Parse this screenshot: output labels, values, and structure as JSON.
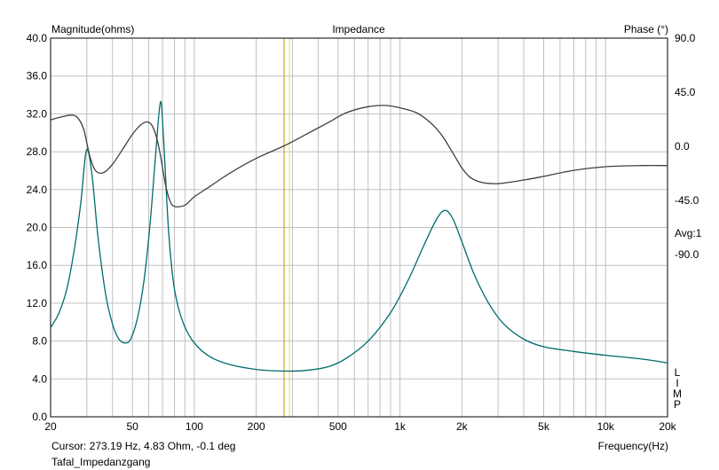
{
  "chart_data": {
    "type": "line",
    "title": "Impedance",
    "ylabel": "Magnitude(ohms)",
    "y2label": "Phase (°)",
    "xlabel": "Frequency(Hz)",
    "x_scale": "log",
    "xlim": [
      20,
      20000
    ],
    "ylim": [
      0,
      40
    ],
    "y2lim": [
      -225,
      90
    ],
    "grid": true,
    "x_ticks": [
      {
        "v": 20,
        "label": "20"
      },
      {
        "v": 50,
        "label": "50"
      },
      {
        "v": 100,
        "label": "100"
      },
      {
        "v": 200,
        "label": "200"
      },
      {
        "v": 500,
        "label": "500"
      },
      {
        "v": 1000,
        "label": "1k"
      },
      {
        "v": 2000,
        "label": "2k"
      },
      {
        "v": 5000,
        "label": "5k"
      },
      {
        "v": 10000,
        "label": "10k"
      },
      {
        "v": 20000,
        "label": "20k"
      }
    ],
    "x_minor": [
      30,
      40,
      60,
      70,
      80,
      90,
      300,
      400,
      600,
      700,
      800,
      900,
      3000,
      4000,
      6000,
      7000,
      8000,
      9000
    ],
    "y_ticks": [
      "0.0",
      "4.0",
      "8.0",
      "12.0",
      "16.0",
      "20.0",
      "24.0",
      "28.0",
      "32.0",
      "36.0",
      "40.0"
    ],
    "y2_ticks": [
      {
        "v": 90,
        "label": "90.0"
      },
      {
        "v": 45,
        "label": "45.0"
      },
      {
        "v": 0,
        "label": "0.0"
      },
      {
        "v": -45,
        "label": "-45.0"
      },
      {
        "v": -90,
        "label": "-90.0"
      }
    ],
    "avg_label": "Avg:1",
    "limp_label": [
      "L",
      "I",
      "M",
      "P"
    ],
    "cursor": {
      "x": 273.19,
      "color": "#b8a200"
    },
    "cursor2": {
      "x": 290,
      "color": "#e6d870"
    },
    "series": [
      {
        "role": "magnitude",
        "color": "#006b6b",
        "points": [
          [
            20,
            9.4
          ],
          [
            22,
            11.0
          ],
          [
            24,
            13.5
          ],
          [
            26,
            17.5
          ],
          [
            28,
            22.5
          ],
          [
            29.5,
            27.5
          ],
          [
            30.5,
            28.0
          ],
          [
            32,
            25.0
          ],
          [
            34,
            19.0
          ],
          [
            37,
            13.0
          ],
          [
            40,
            9.8
          ],
          [
            43,
            8.2
          ],
          [
            46,
            7.8
          ],
          [
            49,
            8.2
          ],
          [
            53,
            10.5
          ],
          [
            57,
            14.5
          ],
          [
            61,
            20.5
          ],
          [
            65,
            28.0
          ],
          [
            68.5,
            33.3
          ],
          [
            71,
            29.0
          ],
          [
            75,
            19.5
          ],
          [
            80,
            13.5
          ],
          [
            88,
            10.0
          ],
          [
            100,
            7.8
          ],
          [
            120,
            6.3
          ],
          [
            150,
            5.5
          ],
          [
            200,
            5.0
          ],
          [
            273,
            4.83
          ],
          [
            350,
            4.9
          ],
          [
            450,
            5.3
          ],
          [
            550,
            6.2
          ],
          [
            700,
            8.0
          ],
          [
            900,
            11.0
          ],
          [
            1100,
            14.5
          ],
          [
            1300,
            18.0
          ],
          [
            1500,
            20.8
          ],
          [
            1650,
            21.8
          ],
          [
            1800,
            21.0
          ],
          [
            2000,
            18.5
          ],
          [
            2300,
            15.0
          ],
          [
            2700,
            12.0
          ],
          [
            3200,
            9.8
          ],
          [
            4000,
            8.2
          ],
          [
            5000,
            7.4
          ],
          [
            7000,
            6.9
          ],
          [
            10000,
            6.5
          ],
          [
            15000,
            6.1
          ],
          [
            20000,
            5.7
          ]
        ]
      },
      {
        "role": "phase",
        "color": "#404040",
        "points": [
          [
            20,
            22
          ],
          [
            22,
            24
          ],
          [
            25,
            26
          ],
          [
            27,
            24
          ],
          [
            29,
            14
          ],
          [
            31,
            -8
          ],
          [
            33,
            -20
          ],
          [
            36,
            -22
          ],
          [
            40,
            -15
          ],
          [
            45,
            -2
          ],
          [
            50,
            10
          ],
          [
            55,
            18
          ],
          [
            60,
            20
          ],
          [
            64,
            13
          ],
          [
            68,
            -5
          ],
          [
            72,
            -30
          ],
          [
            76,
            -45
          ],
          [
            80,
            -50
          ],
          [
            90,
            -49
          ],
          [
            100,
            -42
          ],
          [
            120,
            -33
          ],
          [
            150,
            -22
          ],
          [
            200,
            -10
          ],
          [
            270,
            0
          ],
          [
            350,
            10
          ],
          [
            450,
            20
          ],
          [
            550,
            28
          ],
          [
            700,
            33
          ],
          [
            850,
            34
          ],
          [
            1000,
            32
          ],
          [
            1200,
            28
          ],
          [
            1400,
            20
          ],
          [
            1600,
            9
          ],
          [
            1800,
            -5
          ],
          [
            2000,
            -18
          ],
          [
            2200,
            -26
          ],
          [
            2500,
            -30
          ],
          [
            3000,
            -31
          ],
          [
            4000,
            -28
          ],
          [
            5000,
            -25
          ],
          [
            7000,
            -20
          ],
          [
            10000,
            -17
          ],
          [
            15000,
            -16
          ],
          [
            20000,
            -16
          ]
        ]
      }
    ]
  },
  "footer": {
    "cursor": "Cursor: 273.19 Hz, 4.83 Ohm, -0.1 deg",
    "name": "Tafal_Impedanzgang"
  }
}
